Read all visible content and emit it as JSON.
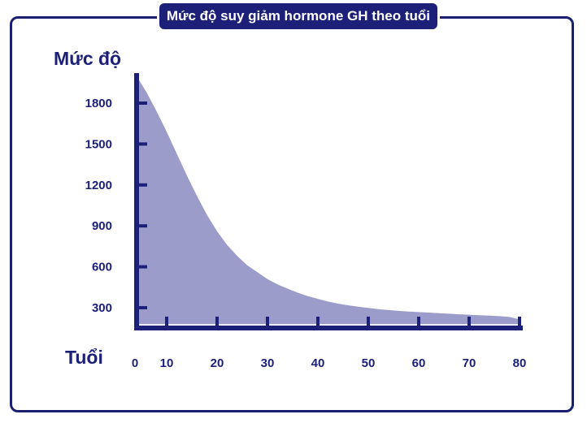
{
  "chart_data": {
    "type": "area",
    "title": "Mức độ suy giảm hormone GH theo tuổi",
    "ylabel": "Mức độ",
    "xlabel": "Tuổi",
    "xlim": [
      0,
      80
    ],
    "ylim": [
      160,
      2000
    ],
    "xticks": [
      0,
      10,
      20,
      30,
      40,
      50,
      60,
      70,
      80
    ],
    "yticks": [
      300,
      600,
      900,
      1200,
      1500,
      1800
    ],
    "x": [
      4,
      6,
      8,
      10,
      12,
      14,
      16,
      18,
      20,
      22,
      24,
      26,
      28,
      30,
      32,
      34,
      36,
      38,
      40,
      42,
      44,
      46,
      48,
      50,
      52,
      54,
      56,
      58,
      60,
      62,
      64,
      66,
      68,
      70,
      72,
      74,
      76,
      78,
      80
    ],
    "y": [
      2000,
      1880,
      1740,
      1590,
      1430,
      1270,
      1120,
      980,
      860,
      760,
      680,
      610,
      560,
      510,
      470,
      440,
      410,
      385,
      365,
      345,
      330,
      318,
      308,
      298,
      290,
      283,
      277,
      272,
      268,
      264,
      260,
      256,
      252,
      249,
      245,
      242,
      238,
      232,
      215
    ],
    "baseline": 180,
    "fill_color": "#9c9ccb",
    "axis_color": "#1c2079",
    "grid": false
  }
}
